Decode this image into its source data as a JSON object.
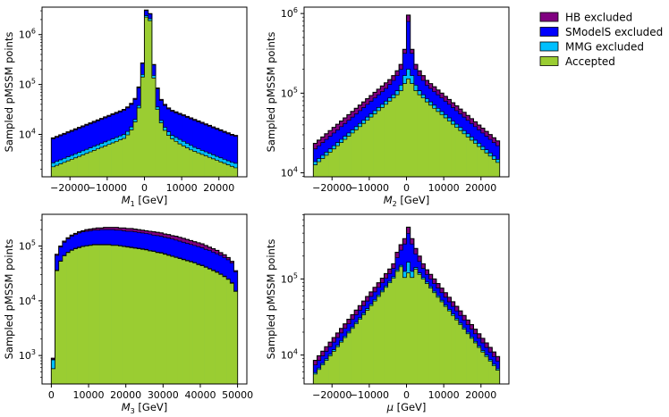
{
  "colors": {
    "hb": "#800080",
    "smodels": "#0000ff",
    "mmg": "#00bfff",
    "accepted": "#9acd32"
  },
  "legend": [
    {
      "key": "hb",
      "label": "HB excluded"
    },
    {
      "key": "smodels",
      "label": "SModelS excluded"
    },
    {
      "key": "mmg",
      "label": "MMG excluded"
    },
    {
      "key": "accepted",
      "label": "Accepted"
    }
  ],
  "chart_data": [
    {
      "type": "histogram",
      "id": "m1",
      "xlabel_sym": "M",
      "xlabel_sub": "1",
      "xlabel_unit": " [GeV]",
      "ylabel": "Sampled pMSSM points",
      "xlim": [
        -27500,
        27500
      ],
      "ylim_log10": [
        3.15,
        6.55
      ],
      "x_ticks": [
        {
          "v": -20000,
          "label": "−20000"
        },
        {
          "v": -10000,
          "label": "−10000"
        },
        {
          "v": 0,
          "label": "0"
        },
        {
          "v": 10000,
          "label": "10000"
        },
        {
          "v": 20000,
          "label": "20000"
        }
      ],
      "y_ticks": [
        {
          "exp": 4,
          "label": "10",
          "sup": "4"
        },
        {
          "exp": 5,
          "label": "10",
          "sup": "5"
        },
        {
          "exp": 6,
          "label": "10",
          "sup": "6"
        }
      ],
      "bin_range": [
        -25000,
        25000
      ],
      "nbins": 50,
      "total_log10": [
        3.93,
        3.96,
        3.99,
        4.02,
        4.05,
        4.08,
        4.11,
        4.14,
        4.17,
        4.2,
        4.23,
        4.26,
        4.29,
        4.32,
        4.35,
        4.38,
        4.41,
        4.44,
        4.47,
        4.5,
        4.55,
        4.62,
        4.72,
        4.95,
        5.43,
        6.49,
        6.42,
        5.4,
        4.93,
        4.7,
        4.6,
        4.53,
        4.48,
        4.45,
        4.42,
        4.39,
        4.36,
        4.33,
        4.3,
        4.27,
        4.24,
        4.21,
        4.18,
        4.15,
        4.12,
        4.09,
        4.06,
        4.03,
        4.0,
        3.98
      ],
      "smodels_log10": [
        3.91,
        3.94,
        3.97,
        4.0,
        4.03,
        4.06,
        4.09,
        4.12,
        4.15,
        4.18,
        4.21,
        4.24,
        4.27,
        4.3,
        4.33,
        4.36,
        4.39,
        4.42,
        4.45,
        4.48,
        4.53,
        4.6,
        4.7,
        4.93,
        5.42,
        6.48,
        6.41,
        5.39,
        4.91,
        4.68,
        4.58,
        4.51,
        4.46,
        4.43,
        4.4,
        4.37,
        4.34,
        4.31,
        4.28,
        4.25,
        4.22,
        4.19,
        4.16,
        4.13,
        4.1,
        4.07,
        4.04,
        4.01,
        3.98,
        3.96
      ],
      "mmg_log10": [
        3.43,
        3.46,
        3.49,
        3.52,
        3.55,
        3.58,
        3.61,
        3.64,
        3.67,
        3.7,
        3.73,
        3.76,
        3.79,
        3.82,
        3.85,
        3.88,
        3.91,
        3.94,
        3.97,
        4.0,
        4.06,
        4.15,
        4.3,
        4.58,
        5.2,
        6.38,
        6.32,
        5.18,
        4.55,
        4.28,
        4.14,
        4.05,
        3.98,
        3.94,
        3.9,
        3.86,
        3.82,
        3.78,
        3.74,
        3.71,
        3.68,
        3.65,
        3.62,
        3.59,
        3.56,
        3.53,
        3.5,
        3.47,
        3.44,
        3.42
      ],
      "accepted_log10": [
        3.35,
        3.38,
        3.41,
        3.44,
        3.47,
        3.5,
        3.53,
        3.56,
        3.59,
        3.62,
        3.65,
        3.68,
        3.71,
        3.74,
        3.77,
        3.8,
        3.83,
        3.86,
        3.89,
        3.92,
        3.99,
        4.09,
        4.25,
        4.53,
        5.15,
        6.35,
        6.28,
        5.13,
        4.5,
        4.23,
        4.08,
        3.98,
        3.91,
        3.86,
        3.81,
        3.77,
        3.73,
        3.69,
        3.66,
        3.63,
        3.6,
        3.57,
        3.54,
        3.51,
        3.48,
        3.45,
        3.42,
        3.39,
        3.36,
        3.33
      ]
    },
    {
      "type": "histogram",
      "id": "m2",
      "xlabel_sym": "M",
      "xlabel_sub": "2",
      "xlabel_unit": " [GeV]",
      "ylabel": "Sampled pMSSM points",
      "xlim": [
        -27500,
        27500
      ],
      "ylim_log10": [
        3.95,
        6.08
      ],
      "x_ticks": [
        {
          "v": -20000,
          "label": "−20000"
        },
        {
          "v": -10000,
          "label": "−10000"
        },
        {
          "v": 0,
          "label": "0"
        },
        {
          "v": 10000,
          "label": "10000"
        },
        {
          "v": 20000,
          "label": "20000"
        }
      ],
      "y_ticks": [
        {
          "exp": 4,
          "label": "10",
          "sup": "4"
        },
        {
          "exp": 5,
          "label": "10",
          "sup": "5"
        },
        {
          "exp": 6,
          "label": "10",
          "sup": "6"
        }
      ],
      "bin_range": [
        -25000,
        25000
      ],
      "nbins": 50,
      "total_log10": [
        4.37,
        4.41,
        4.45,
        4.49,
        4.53,
        4.57,
        4.61,
        4.65,
        4.69,
        4.73,
        4.77,
        4.81,
        4.85,
        4.89,
        4.93,
        4.97,
        5.01,
        5.05,
        5.09,
        5.13,
        5.17,
        5.22,
        5.28,
        5.36,
        5.55,
        5.98,
        5.55,
        5.36,
        5.28,
        5.22,
        5.16,
        5.12,
        5.08,
        5.04,
        5.0,
        4.96,
        4.92,
        4.88,
        4.84,
        4.8,
        4.76,
        4.72,
        4.68,
        4.64,
        4.6,
        4.56,
        4.52,
        4.48,
        4.44,
        4.4
      ],
      "smodels_log10": [
        4.3,
        4.34,
        4.38,
        4.42,
        4.46,
        4.5,
        4.54,
        4.58,
        4.62,
        4.66,
        4.7,
        4.74,
        4.78,
        4.82,
        4.86,
        4.9,
        4.94,
        4.98,
        5.02,
        5.06,
        5.11,
        5.16,
        5.22,
        5.3,
        5.5,
        5.9,
        5.5,
        5.3,
        5.22,
        5.16,
        5.1,
        5.06,
        5.02,
        4.98,
        4.94,
        4.9,
        4.86,
        4.82,
        4.78,
        4.74,
        4.7,
        4.66,
        4.62,
        4.58,
        4.54,
        4.5,
        4.46,
        4.42,
        4.38,
        4.34
      ],
      "mmg_log10": [
        4.14,
        4.18,
        4.22,
        4.26,
        4.3,
        4.34,
        4.38,
        4.42,
        4.46,
        4.5,
        4.54,
        4.58,
        4.62,
        4.66,
        4.7,
        4.74,
        4.78,
        4.82,
        4.86,
        4.9,
        4.94,
        4.98,
        5.03,
        5.1,
        5.22,
        5.3,
        5.22,
        5.1,
        5.03,
        4.98,
        4.93,
        4.89,
        4.85,
        4.81,
        4.77,
        4.73,
        4.69,
        4.65,
        4.61,
        4.57,
        4.53,
        4.49,
        4.45,
        4.41,
        4.37,
        4.33,
        4.29,
        4.25,
        4.21,
        4.17
      ],
      "accepted_log10": [
        4.1,
        4.14,
        4.18,
        4.22,
        4.26,
        4.3,
        4.34,
        4.38,
        4.42,
        4.46,
        4.5,
        4.54,
        4.58,
        4.62,
        4.66,
        4.7,
        4.74,
        4.78,
        4.82,
        4.86,
        4.9,
        4.94,
        4.98,
        5.03,
        5.12,
        5.18,
        5.12,
        5.03,
        4.98,
        4.94,
        4.89,
        4.85,
        4.81,
        4.77,
        4.73,
        4.69,
        4.65,
        4.61,
        4.57,
        4.53,
        4.49,
        4.45,
        4.41,
        4.37,
        4.33,
        4.29,
        4.25,
        4.21,
        4.17,
        4.13
      ]
    },
    {
      "type": "histogram",
      "id": "m3",
      "xlabel_sym": "M",
      "xlabel_sub": "3",
      "xlabel_unit": " [GeV]",
      "ylabel": "Sampled pMSSM points",
      "xlim": [
        -2500,
        52500
      ],
      "ylim_log10": [
        2.48,
        5.58
      ],
      "x_ticks": [
        {
          "v": 0,
          "label": "0"
        },
        {
          "v": 10000,
          "label": "10000"
        },
        {
          "v": 20000,
          "label": "20000"
        },
        {
          "v": 30000,
          "label": "30000"
        },
        {
          "v": 40000,
          "label": "40000"
        },
        {
          "v": 50000,
          "label": "50000"
        }
      ],
      "y_ticks": [
        {
          "exp": 3,
          "label": "10",
          "sup": "3"
        },
        {
          "exp": 4,
          "label": "10",
          "sup": "4"
        },
        {
          "exp": 5,
          "label": "10",
          "sup": "5"
        }
      ],
      "bin_range": [
        0,
        50000
      ],
      "nbins": 50,
      "total_log10": [
        2.95,
        4.85,
        5.0,
        5.09,
        5.15,
        5.2,
        5.23,
        5.26,
        5.28,
        5.3,
        5.31,
        5.32,
        5.33,
        5.33,
        5.34,
        5.34,
        5.34,
        5.34,
        5.33,
        5.33,
        5.32,
        5.32,
        5.31,
        5.3,
        5.29,
        5.28,
        5.27,
        5.26,
        5.25,
        5.24,
        5.22,
        5.21,
        5.19,
        5.18,
        5.16,
        5.14,
        5.12,
        5.1,
        5.08,
        5.06,
        5.04,
        5.01,
        4.98,
        4.95,
        4.92,
        4.88,
        4.84,
        4.79,
        4.72,
        4.55
      ],
      "smodels_log10": [
        2.93,
        4.83,
        4.98,
        5.07,
        5.13,
        5.18,
        5.21,
        5.24,
        5.26,
        5.27,
        5.28,
        5.29,
        5.29,
        5.3,
        5.3,
        5.3,
        5.3,
        5.29,
        5.29,
        5.28,
        5.27,
        5.27,
        5.26,
        5.25,
        5.24,
        5.23,
        5.22,
        5.2,
        5.19,
        5.18,
        5.16,
        5.15,
        5.13,
        5.11,
        5.09,
        5.07,
        5.05,
        5.03,
        5.01,
        4.99,
        4.97,
        4.94,
        4.92,
        4.89,
        4.86,
        4.83,
        4.79,
        4.75,
        4.69,
        4.53
      ],
      "mmg_log10": [
        2.92,
        4.56,
        4.73,
        4.83,
        4.89,
        4.93,
        4.96,
        4.98,
        5.0,
        5.01,
        5.02,
        5.03,
        5.03,
        5.03,
        5.03,
        5.03,
        5.02,
        5.02,
        5.01,
        5.0,
        4.99,
        4.98,
        4.97,
        4.96,
        4.95,
        4.94,
        4.92,
        4.91,
        4.89,
        4.88,
        4.86,
        4.84,
        4.82,
        4.8,
        4.78,
        4.76,
        4.74,
        4.72,
        4.7,
        4.67,
        4.65,
        4.62,
        4.59,
        4.56,
        4.53,
        4.49,
        4.45,
        4.4,
        4.33,
        4.18
      ],
      "accepted_log10": [
        2.76,
        4.55,
        4.72,
        4.82,
        4.88,
        4.92,
        4.95,
        4.97,
        4.99,
        5.0,
        5.01,
        5.02,
        5.02,
        5.02,
        5.02,
        5.02,
        5.01,
        5.01,
        5.0,
        4.99,
        4.98,
        4.97,
        4.96,
        4.95,
        4.94,
        4.93,
        4.91,
        4.9,
        4.88,
        4.87,
        4.85,
        4.83,
        4.81,
        4.79,
        4.77,
        4.75,
        4.73,
        4.71,
        4.69,
        4.66,
        4.64,
        4.61,
        4.58,
        4.55,
        4.52,
        4.48,
        4.44,
        4.39,
        4.32,
        4.17
      ]
    },
    {
      "type": "histogram",
      "id": "mu",
      "xlabel_sym": "μ",
      "xlabel_sub": "",
      "xlabel_unit": " [GeV]",
      "ylabel": "Sampled pMSSM points",
      "xlim": [
        -27500,
        27500
      ],
      "ylim_log10": [
        3.62,
        5.85
      ],
      "x_ticks": [
        {
          "v": -20000,
          "label": "−20000"
        },
        {
          "v": -10000,
          "label": "−10000"
        },
        {
          "v": 0,
          "label": "0"
        },
        {
          "v": 10000,
          "label": "10000"
        },
        {
          "v": 20000,
          "label": "20000"
        }
      ],
      "y_ticks": [
        {
          "exp": 4,
          "label": "10",
          "sup": "4"
        },
        {
          "exp": 5,
          "label": "10",
          "sup": "5"
        }
      ],
      "bin_range": [
        -25000,
        25000
      ],
      "nbins": 50,
      "total_log10": [
        3.93,
        3.99,
        4.05,
        4.11,
        4.17,
        4.23,
        4.29,
        4.35,
        4.41,
        4.47,
        4.53,
        4.59,
        4.65,
        4.71,
        4.77,
        4.83,
        4.89,
        4.95,
        5.01,
        5.07,
        5.13,
        5.2,
        5.35,
        5.45,
        5.53,
        5.68,
        5.53,
        5.4,
        5.3,
        5.2,
        5.12,
        5.06,
        5.0,
        4.94,
        4.88,
        4.82,
        4.76,
        4.7,
        4.64,
        4.58,
        4.52,
        4.46,
        4.4,
        4.34,
        4.28,
        4.22,
        4.16,
        4.1,
        4.04,
        3.98
      ],
      "smodels_log10": [
        3.87,
        3.93,
        3.99,
        4.05,
        4.11,
        4.17,
        4.23,
        4.29,
        4.35,
        4.41,
        4.47,
        4.53,
        4.59,
        4.65,
        4.71,
        4.77,
        4.83,
        4.89,
        4.95,
        5.01,
        5.07,
        5.14,
        5.28,
        5.38,
        5.46,
        5.6,
        5.46,
        5.33,
        5.23,
        5.14,
        5.06,
        5.0,
        4.94,
        4.88,
        4.82,
        4.76,
        4.7,
        4.64,
        4.58,
        4.52,
        4.46,
        4.4,
        4.34,
        4.28,
        4.22,
        4.16,
        4.1,
        4.04,
        3.98,
        3.92
      ],
      "mmg_log10": [
        3.77,
        3.83,
        3.89,
        3.95,
        4.01,
        4.07,
        4.13,
        4.19,
        4.25,
        4.31,
        4.37,
        4.43,
        4.49,
        4.55,
        4.61,
        4.67,
        4.73,
        4.79,
        4.85,
        4.91,
        4.97,
        5.03,
        5.12,
        5.18,
        5.1,
        5.22,
        5.1,
        5.15,
        5.08,
        5.02,
        4.96,
        4.9,
        4.84,
        4.78,
        4.72,
        4.66,
        4.6,
        4.54,
        4.48,
        4.42,
        4.36,
        4.3,
        4.24,
        4.18,
        4.12,
        4.06,
        4.0,
        3.94,
        3.88,
        3.82
      ],
      "accepted_log10": [
        3.75,
        3.81,
        3.87,
        3.93,
        3.99,
        4.05,
        4.11,
        4.17,
        4.23,
        4.29,
        4.35,
        4.41,
        4.47,
        4.53,
        4.59,
        4.65,
        4.71,
        4.77,
        4.83,
        4.89,
        4.95,
        5.01,
        5.1,
        5.16,
        5.02,
        5.08,
        5.02,
        5.13,
        5.06,
        5.0,
        4.94,
        4.88,
        4.82,
        4.76,
        4.7,
        4.64,
        4.58,
        4.52,
        4.46,
        4.4,
        4.34,
        4.28,
        4.22,
        4.16,
        4.1,
        4.04,
        3.98,
        3.92,
        3.86,
        3.8
      ]
    }
  ]
}
